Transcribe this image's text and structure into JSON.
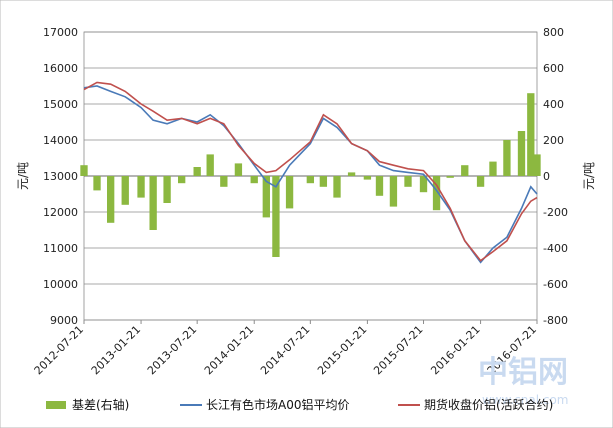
{
  "watermark": {
    "brand": "中铝网",
    "url": "www.cnal.com"
  },
  "chart_data": {
    "type": "line",
    "title": "",
    "xlabel": "",
    "ylabel": "元/吨",
    "ylabel_right": "元/吨",
    "ylim": [
      9000,
      17000
    ],
    "ylim_right": [
      -800,
      800
    ],
    "yticks": [
      "17000",
      "16000",
      "15000",
      "14000",
      "13000",
      "12000",
      "11000",
      "10000",
      "9000"
    ],
    "yticks_right": [
      "800",
      "600",
      "400",
      "200",
      "0",
      "-200",
      "-400",
      "-600",
      "-800"
    ],
    "xticks": [
      "2012-07-21",
      "2013-01-21",
      "2013-07-21",
      "2014-01-21",
      "2014-07-21",
      "2015-01-21",
      "2015-07-21",
      "2016-01-21",
      "2016-07-21"
    ],
    "grid": true,
    "legend_position": "bottom",
    "x_range": [
      "2012-07-21",
      "2016-07-21"
    ],
    "series": [
      {
        "name": "基差(右轴)",
        "kind": "bar",
        "axis": "right",
        "color": "#8cb840",
        "x": [
          "2012-07-21",
          "2012-09-01",
          "2012-10-15",
          "2012-12-01",
          "2013-01-21",
          "2013-03-01",
          "2013-04-15",
          "2013-06-01",
          "2013-07-21",
          "2013-09-01",
          "2013-10-15",
          "2013-12-01",
          "2014-01-21",
          "2014-03-01",
          "2014-04-01",
          "2014-05-15",
          "2014-07-21",
          "2014-09-01",
          "2014-10-15",
          "2014-12-01",
          "2015-01-21",
          "2015-03-01",
          "2015-04-15",
          "2015-06-01",
          "2015-07-21",
          "2015-09-01",
          "2015-10-15",
          "2015-12-01",
          "2016-01-21",
          "2016-03-01",
          "2016-04-15",
          "2016-06-01",
          "2016-07-01",
          "2016-07-21"
        ],
        "values": [
          60,
          -80,
          -260,
          -160,
          -120,
          -300,
          -150,
          -40,
          50,
          120,
          -60,
          70,
          -40,
          -230,
          -450,
          -180,
          -40,
          -60,
          -120,
          20,
          -20,
          -110,
          -170,
          -60,
          -90,
          -190,
          -10,
          60,
          -60,
          80,
          200,
          250,
          460,
          120
        ]
      },
      {
        "name": "长江有色市场A00铝平均价",
        "kind": "line",
        "axis": "left",
        "color": "#4a7ab8",
        "x": [
          "2012-07-21",
          "2012-09-01",
          "2012-10-15",
          "2012-12-01",
          "2013-01-21",
          "2013-03-01",
          "2013-04-15",
          "2013-06-01",
          "2013-07-21",
          "2013-09-01",
          "2013-10-15",
          "2013-12-01",
          "2014-01-21",
          "2014-03-01",
          "2014-04-01",
          "2014-05-15",
          "2014-07-21",
          "2014-09-01",
          "2014-10-15",
          "2014-12-01",
          "2015-01-21",
          "2015-03-01",
          "2015-04-15",
          "2015-06-01",
          "2015-07-21",
          "2015-09-01",
          "2015-10-15",
          "2015-12-01",
          "2016-01-21",
          "2016-03-01",
          "2016-04-15",
          "2016-06-01",
          "2016-07-01",
          "2016-07-21"
        ],
        "values": [
          15450,
          15500,
          15350,
          15200,
          14900,
          14550,
          14450,
          14600,
          14500,
          14700,
          14400,
          13900,
          13300,
          12850,
          12700,
          13300,
          13900,
          14600,
          14350,
          13900,
          13700,
          13300,
          13150,
          13100,
          13050,
          12600,
          12050,
          11200,
          10600,
          11000,
          11300,
          12100,
          12700,
          12500
        ]
      },
      {
        "name": "期货收盘价铝(活跃合约)",
        "kind": "line",
        "axis": "left",
        "color": "#c0504d",
        "x": [
          "2012-07-21",
          "2012-09-01",
          "2012-10-15",
          "2012-12-01",
          "2013-01-21",
          "2013-03-01",
          "2013-04-15",
          "2013-06-01",
          "2013-07-21",
          "2013-09-01",
          "2013-10-15",
          "2013-12-01",
          "2014-01-21",
          "2014-03-01",
          "2014-04-01",
          "2014-05-15",
          "2014-07-21",
          "2014-09-01",
          "2014-10-15",
          "2014-12-01",
          "2015-01-21",
          "2015-03-01",
          "2015-04-15",
          "2015-06-01",
          "2015-07-21",
          "2015-09-01",
          "2015-10-15",
          "2015-12-01",
          "2016-01-21",
          "2016-03-01",
          "2016-04-15",
          "2016-06-01",
          "2016-07-01",
          "2016-07-21"
        ],
        "values": [
          15400,
          15600,
          15550,
          15350,
          15000,
          14800,
          14550,
          14600,
          14450,
          14600,
          14450,
          13850,
          13350,
          13100,
          13150,
          13450,
          13950,
          14700,
          14450,
          13900,
          13700,
          13400,
          13300,
          13200,
          13150,
          12750,
          12100,
          11200,
          10650,
          10900,
          11200,
          11950,
          12300,
          12400
        ]
      }
    ]
  }
}
